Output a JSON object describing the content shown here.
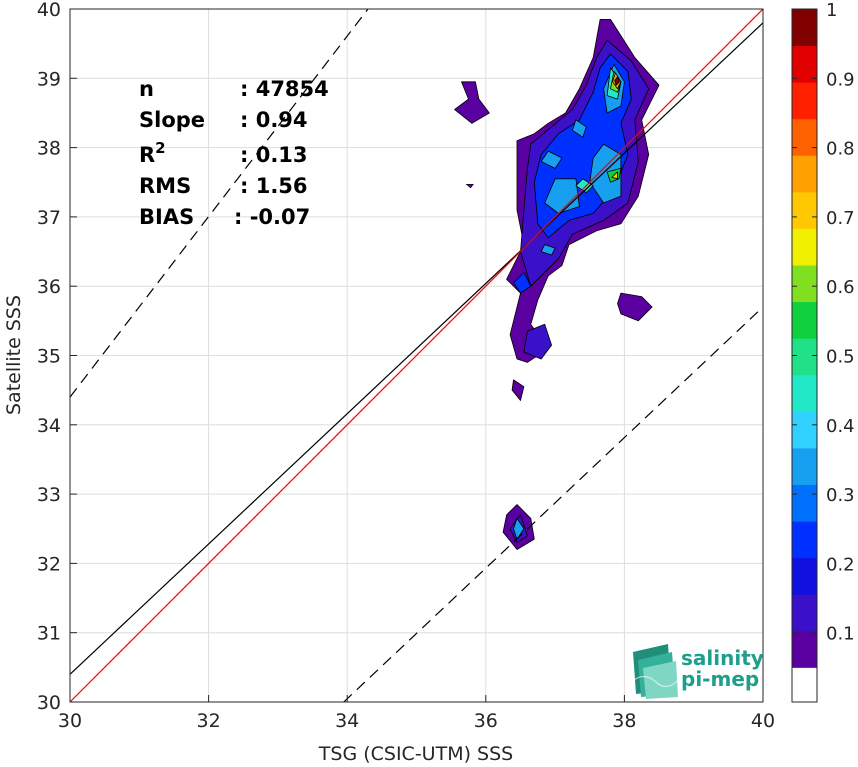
{
  "chart_data": {
    "type": "heatmap",
    "subtype": "density-contour-scatter",
    "xlabel": "TSG (CSIC-UTM) SSS",
    "ylabel": "Satellite SSS",
    "xlim": [
      30,
      40
    ],
    "ylim": [
      30,
      40
    ],
    "xticks": [
      "30",
      "32",
      "34",
      "36",
      "38",
      "40"
    ],
    "yticks": [
      "30",
      "31",
      "32",
      "33",
      "34",
      "35",
      "36",
      "37",
      "38",
      "39",
      "40"
    ],
    "grid": true,
    "stats": [
      {
        "label": "n",
        "value": ": 47854"
      },
      {
        "label": "Slope",
        "value": ": 0.94"
      },
      {
        "label": "R",
        "sup": "2",
        "value": ": 0.13"
      },
      {
        "label": "RMS",
        "value": ": 1.56"
      },
      {
        "label": "BIAS",
        "value": ": -0.07"
      }
    ],
    "lines": {
      "identity": {
        "color": "#ff0000",
        "x": [
          30,
          40
        ],
        "y": [
          30,
          40
        ]
      },
      "regression": {
        "color": "#000000",
        "x": [
          30,
          40
        ],
        "y": [
          30.4,
          39.8
        ]
      },
      "upper_bound": {
        "color": "#000000",
        "dash": true,
        "x": [
          30,
          34.3
        ],
        "y": [
          34.4,
          40
        ]
      },
      "lower_bound": {
        "color": "#000000",
        "dash": true,
        "x": [
          33.95,
          40
        ],
        "y": [
          30,
          35.7
        ]
      }
    },
    "colorbar": {
      "min": 0,
      "max": 1,
      "tick_labels": [
        "0.1",
        "0.2",
        "0.3",
        "0.4",
        "0.5",
        "0.6",
        "0.7",
        "0.8",
        "0.9",
        "1"
      ],
      "tick_values": [
        0.1,
        0.2,
        0.3,
        0.4,
        0.5,
        0.6,
        0.7,
        0.8,
        0.9,
        1.0
      ],
      "colors": [
        "#5a00a0",
        "#3a10c8",
        "#1010e0",
        "#0030ff",
        "#0070ff",
        "#18a0f0",
        "#30d0ff",
        "#22e8c8",
        "#20e088",
        "#10d040",
        "#80e020",
        "#f0f000",
        "#ffc800",
        "#ffa000",
        "#ff6000",
        "#ff2000",
        "#e00000",
        "#800000"
      ]
    },
    "density_blobs": [
      {
        "level": 0.05,
        "points": [
          [
            37.8,
            39.85
          ],
          [
            38.15,
            39.3
          ],
          [
            38.5,
            38.9
          ],
          [
            38.25,
            38.4
          ],
          [
            38.35,
            37.9
          ],
          [
            38.2,
            37.3
          ],
          [
            37.95,
            36.9
          ],
          [
            37.6,
            36.8
          ],
          [
            37.2,
            36.6
          ],
          [
            37.1,
            36.3
          ],
          [
            36.9,
            36.15
          ],
          [
            36.75,
            35.8
          ],
          [
            36.65,
            35.45
          ],
          [
            36.9,
            35.1
          ],
          [
            36.6,
            34.9
          ],
          [
            36.45,
            34.95
          ],
          [
            36.35,
            35.3
          ],
          [
            36.5,
            35.9
          ],
          [
            36.3,
            36.1
          ],
          [
            36.55,
            36.6
          ],
          [
            36.45,
            37.1
          ],
          [
            36.45,
            37.6
          ],
          [
            36.45,
            38.1
          ],
          [
            36.7,
            38.2
          ],
          [
            36.9,
            38.35
          ],
          [
            37.15,
            38.5
          ],
          [
            37.35,
            38.85
          ],
          [
            37.55,
            39.3
          ],
          [
            37.65,
            39.85
          ]
        ]
      },
      {
        "level": 0.05,
        "points": [
          [
            35.65,
            38.95
          ],
          [
            35.85,
            38.95
          ],
          [
            35.9,
            38.7
          ],
          [
            36.05,
            38.5
          ],
          [
            35.8,
            38.35
          ],
          [
            35.55,
            38.55
          ],
          [
            35.75,
            38.7
          ]
        ]
      },
      {
        "level": 0.05,
        "points": [
          [
            37.95,
            35.9
          ],
          [
            38.25,
            35.85
          ],
          [
            38.4,
            35.7
          ],
          [
            38.2,
            35.5
          ],
          [
            37.95,
            35.6
          ],
          [
            37.9,
            35.75
          ]
        ]
      },
      {
        "level": 0.05,
        "points": [
          [
            36.4,
            34.65
          ],
          [
            36.55,
            34.55
          ],
          [
            36.5,
            34.35
          ],
          [
            36.38,
            34.5
          ]
        ]
      },
      {
        "level": 0.05,
        "points": [
          [
            36.45,
            32.85
          ],
          [
            36.65,
            32.65
          ],
          [
            36.7,
            32.35
          ],
          [
            36.45,
            32.2
          ],
          [
            36.25,
            32.45
          ],
          [
            36.3,
            32.7
          ]
        ]
      },
      {
        "level": 0.1,
        "points": [
          [
            37.75,
            39.55
          ],
          [
            38.1,
            39.25
          ],
          [
            38.35,
            38.85
          ],
          [
            38.15,
            38.4
          ],
          [
            38.2,
            37.8
          ],
          [
            38.05,
            37.2
          ],
          [
            37.7,
            36.95
          ],
          [
            37.25,
            36.75
          ],
          [
            37.05,
            36.4
          ],
          [
            36.85,
            36.2
          ],
          [
            36.65,
            36.0
          ],
          [
            36.5,
            36.5
          ],
          [
            36.55,
            37.1
          ],
          [
            36.6,
            37.7
          ],
          [
            36.65,
            38.05
          ],
          [
            36.95,
            38.3
          ],
          [
            37.25,
            38.55
          ],
          [
            37.45,
            38.9
          ],
          [
            37.6,
            39.3
          ]
        ]
      },
      {
        "level": 0.1,
        "points": [
          [
            36.85,
            35.45
          ],
          [
            36.95,
            35.15
          ],
          [
            36.8,
            34.95
          ],
          [
            36.55,
            35.05
          ],
          [
            36.6,
            35.35
          ]
        ]
      },
      {
        "level": 0.1,
        "points": [
          [
            36.5,
            32.7
          ],
          [
            36.6,
            32.4
          ],
          [
            36.45,
            32.3
          ],
          [
            36.35,
            32.5
          ]
        ]
      },
      {
        "level": 0.2,
        "points": [
          [
            37.8,
            39.35
          ],
          [
            38.05,
            39.1
          ],
          [
            38.1,
            38.7
          ],
          [
            37.95,
            38.35
          ],
          [
            38.05,
            37.9
          ],
          [
            37.85,
            37.4
          ],
          [
            37.55,
            37.05
          ],
          [
            37.2,
            36.95
          ],
          [
            36.9,
            36.7
          ],
          [
            36.75,
            36.9
          ],
          [
            36.7,
            37.5
          ],
          [
            36.8,
            37.9
          ],
          [
            37.05,
            38.2
          ],
          [
            37.35,
            38.4
          ],
          [
            37.55,
            38.8
          ],
          [
            37.65,
            39.15
          ]
        ]
      },
      {
        "level": 0.2,
        "points": [
          [
            36.55,
            36.2
          ],
          [
            36.65,
            36.0
          ],
          [
            36.5,
            35.9
          ],
          [
            36.4,
            36.05
          ]
        ]
      },
      {
        "level": 0.3,
        "points": [
          [
            37.85,
            39.2
          ],
          [
            38.0,
            38.95
          ],
          [
            37.95,
            38.6
          ],
          [
            37.75,
            38.5
          ],
          [
            37.7,
            38.85
          ]
        ]
      },
      {
        "level": 0.3,
        "points": [
          [
            37.7,
            38.05
          ],
          [
            37.95,
            37.9
          ],
          [
            37.95,
            37.3
          ],
          [
            37.7,
            37.2
          ],
          [
            37.5,
            37.5
          ],
          [
            37.55,
            37.85
          ]
        ]
      },
      {
        "level": 0.3,
        "points": [
          [
            37.0,
            37.55
          ],
          [
            37.3,
            37.55
          ],
          [
            37.35,
            37.15
          ],
          [
            37.05,
            37.05
          ],
          [
            36.85,
            37.2
          ]
        ]
      },
      {
        "level": 0.3,
        "points": [
          [
            36.9,
            37.95
          ],
          [
            37.1,
            37.85
          ],
          [
            37.0,
            37.7
          ],
          [
            36.8,
            37.8
          ]
        ]
      },
      {
        "level": 0.3,
        "points": [
          [
            37.3,
            38.4
          ],
          [
            37.45,
            38.3
          ],
          [
            37.4,
            38.15
          ],
          [
            37.25,
            38.25
          ]
        ]
      },
      {
        "level": 0.3,
        "points": [
          [
            36.85,
            36.6
          ],
          [
            37.0,
            36.55
          ],
          [
            36.95,
            36.45
          ],
          [
            36.8,
            36.5
          ]
        ]
      },
      {
        "level": 0.3,
        "points": [
          [
            36.45,
            32.65
          ],
          [
            36.55,
            32.5
          ],
          [
            36.45,
            32.35
          ],
          [
            36.4,
            32.5
          ]
        ]
      },
      {
        "level": 0.4,
        "points": [
          [
            37.4,
            37.55
          ],
          [
            37.55,
            37.45
          ],
          [
            37.45,
            37.35
          ],
          [
            37.3,
            37.45
          ]
        ]
      },
      {
        "level": 0.4,
        "points": [
          [
            37.8,
            39.15
          ],
          [
            37.95,
            38.95
          ],
          [
            37.9,
            38.7
          ],
          [
            37.75,
            38.75
          ]
        ]
      },
      {
        "level": 0.5,
        "points": [
          [
            37.95,
            37.7
          ],
          [
            37.92,
            37.55
          ],
          [
            37.8,
            37.5
          ],
          [
            37.75,
            37.65
          ]
        ]
      },
      {
        "level": 0.6,
        "points": [
          [
            37.85,
            39.1
          ],
          [
            37.95,
            38.95
          ],
          [
            37.9,
            38.8
          ],
          [
            37.8,
            38.85
          ]
        ]
      },
      {
        "level": 0.7,
        "points": [
          [
            37.9,
            37.65
          ],
          [
            37.9,
            37.55
          ],
          [
            37.82,
            37.57
          ]
        ]
      },
      {
        "level": 0.75,
        "points": [
          [
            37.87,
            39.08
          ],
          [
            37.95,
            38.95
          ],
          [
            37.9,
            38.85
          ],
          [
            37.83,
            38.95
          ]
        ]
      },
      {
        "level": 0.95,
        "points": [
          [
            37.9,
            39.02
          ],
          [
            37.93,
            38.95
          ],
          [
            37.88,
            38.9
          ],
          [
            37.86,
            38.97
          ]
        ]
      }
    ]
  },
  "logo": {
    "line1": "salinity",
    "line2": "pi-mep"
  }
}
